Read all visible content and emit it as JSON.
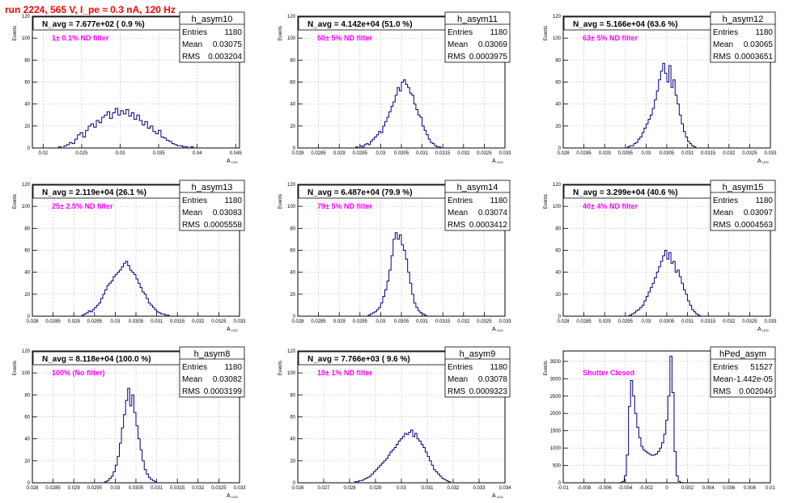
{
  "header": {
    "title": "run 2224,   565 V, I_pe ≈ 0.3 nA, 120 Hz",
    "title_color": "#ff0000"
  },
  "colors": {
    "hist_line": "#000080",
    "grid": "#c8c8c8",
    "annotation": "#ff00ff",
    "frame": "#000000"
  },
  "chart_data": [
    {
      "type": "histogram",
      "name": "h_asym10",
      "nav_text": "N_avg = 7.677e+02 ( 0.9 %)",
      "annotation": "1± 0.1% ND filter",
      "ylabel": "Events",
      "xlabel": "A_LED",
      "stats": {
        "entries_label": "Entries",
        "entries": "1180",
        "mean_label": "Mean",
        "mean": "0.03075",
        "rms_label": "RMS",
        "rms": "0.003204"
      },
      "xlim": [
        0.0186,
        0.0455
      ],
      "ylim": [
        0,
        120
      ],
      "x_ticks": [
        "0.02",
        "0.025",
        "0.03",
        "0.035",
        "0.04",
        "0.045"
      ],
      "x_tick_values": [
        0.02,
        0.025,
        0.03,
        0.035,
        0.04,
        0.045
      ],
      "y_ticks": [
        "0",
        "20",
        "40",
        "60",
        "80",
        "100",
        "120"
      ],
      "bin_start": 0.022,
      "bin_width": 0.00035,
      "counts": [
        1,
        0,
        2,
        3,
        5,
        4,
        8,
        12,
        14,
        10,
        16,
        20,
        22,
        19,
        25,
        23,
        28,
        30,
        33,
        27,
        32,
        36,
        30,
        34,
        31,
        35,
        29,
        32,
        26,
        30,
        25,
        21,
        24,
        18,
        20,
        15,
        13,
        16,
        10,
        9,
        7,
        6,
        4,
        3,
        2,
        2,
        1,
        1,
        0,
        1
      ]
    },
    {
      "type": "histogram",
      "name": "h_asym11",
      "nav_text": "N_avg = 4.142e+04 (51.0 %)",
      "annotation": "50± 5% ND filter",
      "ylabel": "Events",
      "xlabel": "A_LED",
      "stats": {
        "entries_label": "Entries",
        "entries": "1180",
        "mean_label": "Mean",
        "mean": "0.03069",
        "rms_label": "RMS",
        "rms": "0.0003975"
      },
      "xlim": [
        0.028,
        0.033
      ],
      "ylim": [
        0,
        120
      ],
      "x_ticks": [
        "0.028",
        "0.0285",
        "0.029",
        "0.0295",
        "0.03",
        "0.0305",
        "0.031",
        "0.0315",
        "0.032",
        "0.0325",
        "0.033"
      ],
      "x_tick_values": [
        0.028,
        0.0285,
        0.029,
        0.0295,
        0.03,
        0.0305,
        0.031,
        0.0315,
        0.032,
        0.0325,
        0.033
      ],
      "y_ticks": [
        "0",
        "20",
        "40",
        "60",
        "80",
        "100",
        "120"
      ],
      "bin_start": 0.0294,
      "bin_width": 5e-05,
      "counts": [
        1,
        0,
        2,
        1,
        3,
        4,
        3,
        6,
        8,
        10,
        12,
        15,
        14,
        20,
        24,
        28,
        33,
        38,
        42,
        48,
        55,
        52,
        60,
        62,
        58,
        55,
        50,
        48,
        40,
        35,
        30,
        28,
        20,
        16,
        12,
        8,
        5,
        4,
        2,
        1,
        1
      ]
    },
    {
      "type": "histogram",
      "name": "h_asym12",
      "nav_text": "N_avg = 5.166e+04 (63.6 %)",
      "annotation": "63± 5% ND filter",
      "ylabel": "Events",
      "xlabel": "A_LED",
      "stats": {
        "entries_label": "Entries",
        "entries": "1180",
        "mean_label": "Mean",
        "mean": "0.03065",
        "rms_label": "RMS",
        "rms": "0.0003651"
      },
      "xlim": [
        0.028,
        0.033
      ],
      "ylim": [
        0,
        120
      ],
      "x_ticks": [
        "0.028",
        "0.0285",
        "0.029",
        "0.0295",
        "0.03",
        "0.0305",
        "0.031",
        "0.0315",
        "0.032",
        "0.0325",
        "0.033"
      ],
      "x_tick_values": [
        0.028,
        0.0285,
        0.029,
        0.0295,
        0.03,
        0.0305,
        0.031,
        0.0315,
        0.032,
        0.0325,
        0.033
      ],
      "y_ticks": [
        "0",
        "20",
        "40",
        "60",
        "80",
        "100",
        "120"
      ],
      "bin_start": 0.02955,
      "bin_width": 5e-05,
      "counts": [
        1,
        2,
        2,
        4,
        5,
        8,
        10,
        14,
        18,
        22,
        26,
        30,
        36,
        44,
        52,
        62,
        70,
        77,
        68,
        60,
        75,
        55,
        62,
        48,
        40,
        30,
        22,
        15,
        10,
        6,
        4,
        2,
        1
      ]
    },
    {
      "type": "histogram",
      "name": "h_asym13",
      "nav_text": "N_avg = 2.119e+04 (26.1 %)",
      "annotation": "25± 2.5% ND filter",
      "ylabel": "Events",
      "xlabel": "A_LED",
      "stats": {
        "entries_label": "Entries",
        "entries": "1180",
        "mean_label": "Mean",
        "mean": "0.03083",
        "rms_label": "RMS",
        "rms": "0.0005558"
      },
      "xlim": [
        0.028,
        0.033
      ],
      "ylim": [
        0,
        120
      ],
      "x_ticks": [
        "0.028",
        "0.0285",
        "0.029",
        "0.0295",
        "0.03",
        "0.0305",
        "0.031",
        "0.0315",
        "0.032",
        "0.0325",
        "0.033"
      ],
      "x_tick_values": [
        0.028,
        0.0285,
        0.029,
        0.0295,
        0.03,
        0.0305,
        0.031,
        0.0315,
        0.032,
        0.0325,
        0.033
      ],
      "y_ticks": [
        "0",
        "20",
        "40",
        "60",
        "80",
        "100",
        "120"
      ],
      "bin_start": 0.0292,
      "bin_width": 5e-05,
      "counts": [
        1,
        2,
        3,
        5,
        4,
        6,
        8,
        10,
        12,
        16,
        20,
        24,
        28,
        30,
        32,
        36,
        38,
        40,
        42,
        45,
        48,
        50,
        46,
        42,
        40,
        38,
        34,
        30,
        26,
        22,
        20,
        16,
        12,
        10,
        8,
        6,
        4,
        3,
        2,
        2,
        1,
        1
      ]
    },
    {
      "type": "histogram",
      "name": "h_asym14",
      "nav_text": "N_avg = 6.487e+04 (79.9 %)",
      "annotation": "79± 5% ND filter",
      "ylabel": "Events",
      "xlabel": "A_LED",
      "stats": {
        "entries_label": "Entries",
        "entries": "1180",
        "mean_label": "Mean",
        "mean": "0.03074",
        "rms_label": "RMS",
        "rms": "0.0003412"
      },
      "xlim": [
        0.028,
        0.033
      ],
      "ylim": [
        0,
        120
      ],
      "x_ticks": [
        "0.028",
        "0.0285",
        "0.029",
        "0.0295",
        "0.03",
        "0.0305",
        "0.031",
        "0.0315",
        "0.032",
        "0.0325",
        "0.033"
      ],
      "x_tick_values": [
        0.028,
        0.0285,
        0.029,
        0.0295,
        0.03,
        0.0305,
        0.031,
        0.0315,
        0.032,
        0.0325,
        0.033
      ],
      "y_ticks": [
        "0",
        "20",
        "40",
        "60",
        "80",
        "100",
        "120"
      ],
      "bin_start": 0.0297,
      "bin_width": 5e-05,
      "counts": [
        1,
        2,
        3,
        4,
        6,
        8,
        12,
        18,
        24,
        32,
        42,
        55,
        70,
        76,
        70,
        74,
        65,
        60,
        52,
        40,
        30,
        20,
        12,
        8,
        5,
        3,
        2,
        1
      ]
    },
    {
      "type": "histogram",
      "name": "h_asym15",
      "nav_text": "N_avg = 3.299e+04 (40.6 %)",
      "annotation": "40± 4% ND filter",
      "ylabel": "Events",
      "xlabel": "A_LED",
      "stats": {
        "entries_label": "Entries",
        "entries": "1180",
        "mean_label": "Mean",
        "mean": "0.03097",
        "rms_label": "RMS",
        "rms": "0.0004563"
      },
      "xlim": [
        0.028,
        0.033
      ],
      "ylim": [
        0,
        120
      ],
      "x_ticks": [
        "0.028",
        "0.0285",
        "0.029",
        "0.0295",
        "0.03",
        "0.0305",
        "0.031",
        "0.0315",
        "0.032",
        "0.0325",
        "0.033"
      ],
      "x_tick_values": [
        0.028,
        0.0285,
        0.029,
        0.0295,
        0.03,
        0.0305,
        0.031,
        0.0315,
        0.032,
        0.0325,
        0.033
      ],
      "y_ticks": [
        "0",
        "20",
        "40",
        "60",
        "80",
        "100",
        "120"
      ],
      "bin_start": 0.0296,
      "bin_width": 5e-05,
      "counts": [
        1,
        2,
        3,
        5,
        6,
        8,
        10,
        14,
        18,
        22,
        26,
        30,
        35,
        40,
        45,
        50,
        55,
        60,
        52,
        58,
        48,
        50,
        40,
        42,
        36,
        30,
        24,
        20,
        14,
        10,
        6,
        4,
        2,
        1
      ]
    },
    {
      "type": "histogram",
      "name": "h_asym8",
      "nav_text": "N_avg = 8.118e+04 (100.0 %)",
      "annotation": "100% (No filter)",
      "ylabel": "Events",
      "xlabel": "A_LED",
      "stats": {
        "entries_label": "Entries",
        "entries": "1180",
        "mean_label": "Mean",
        "mean": "0.03082",
        "rms_label": "RMS",
        "rms": "0.0003199"
      },
      "xlim": [
        0.028,
        0.033
      ],
      "ylim": [
        0,
        120
      ],
      "x_ticks": [
        "0.028",
        "0.0285",
        "0.029",
        "0.0295",
        "0.03",
        "0.0305",
        "0.031",
        "0.0315",
        "0.032",
        "0.0325",
        "0.033"
      ],
      "x_tick_values": [
        0.028,
        0.0285,
        0.029,
        0.0295,
        0.03,
        0.0305,
        0.031,
        0.0315,
        0.032,
        0.0325,
        0.033
      ],
      "y_ticks": [
        "0",
        "20",
        "40",
        "60",
        "80",
        "100",
        "120"
      ],
      "bin_start": 0.02975,
      "bin_width": 5e-05,
      "counts": [
        1,
        2,
        4,
        6,
        10,
        16,
        24,
        36,
        50,
        62,
        75,
        86,
        70,
        80,
        64,
        52,
        40,
        30,
        20,
        12,
        8,
        5,
        3,
        2,
        1
      ]
    },
    {
      "type": "histogram",
      "name": "h_asym9",
      "nav_text": "N_avg = 7.766e+03 ( 9.6 %)",
      "annotation": "10± 1% ND filter",
      "ylabel": "Events",
      "xlabel": "A_LED",
      "stats": {
        "entries_label": "Entries",
        "entries": "1180",
        "mean_label": "Mean",
        "mean": "0.03078",
        "rms_label": "RMS",
        "rms": "0.0009323"
      },
      "xlim": [
        0.026,
        0.034
      ],
      "ylim": [
        0,
        120
      ],
      "x_ticks": [
        "0.026",
        "0.027",
        "0.028",
        "0.029",
        "0.03",
        "0.031",
        "0.032",
        "0.033",
        "0.034"
      ],
      "x_tick_values": [
        0.026,
        0.027,
        0.028,
        0.029,
        0.03,
        0.031,
        0.032,
        0.033,
        0.034
      ],
      "y_ticks": [
        "0",
        "20",
        "40",
        "60",
        "80",
        "100",
        "120"
      ],
      "bin_start": 0.0282,
      "bin_width": 8e-05,
      "counts": [
        1,
        1,
        2,
        2,
        3,
        4,
        5,
        6,
        8,
        10,
        12,
        14,
        16,
        18,
        20,
        22,
        25,
        28,
        30,
        32,
        35,
        38,
        40,
        42,
        45,
        44,
        46,
        48,
        42,
        45,
        40,
        38,
        35,
        32,
        28,
        24,
        20,
        16,
        12,
        10,
        8,
        6,
        4,
        3,
        2,
        1
      ]
    },
    {
      "type": "histogram",
      "name": "hPed_asym",
      "nav_text": "",
      "annotation": "Shutter Closed",
      "ylabel": "Events",
      "xlabel": "",
      "stats": {
        "entries_label": "Entries",
        "entries": "51527",
        "mean_label": "Mean",
        "mean": "-1.442e-05",
        "rms_label": "RMS",
        "rms": "0.002046"
      },
      "xlim": [
        -0.01,
        0.01
      ],
      "ylim": [
        0,
        3800
      ],
      "x_ticks": [
        "-0.01",
        "-0.008",
        "-0.006",
        "-0.004",
        "-0.002",
        "0",
        "0.002",
        "0.004",
        "0.006",
        "0.008",
        "0.01"
      ],
      "x_tick_values": [
        -0.01,
        -0.008,
        -0.006,
        -0.004,
        -0.002,
        0,
        0.002,
        0.004,
        0.006,
        0.008,
        0.01
      ],
      "y_ticks": [
        "0",
        "500",
        "1000",
        "1500",
        "2000",
        "2500",
        "3000",
        "3500"
      ],
      "bin_start": -0.0045,
      "bin_width": 0.0002,
      "counts": [
        10,
        40,
        200,
        800,
        2200,
        2950,
        2500,
        2000,
        1600,
        1300,
        1050,
        950,
        900,
        860,
        820,
        790,
        800,
        830,
        900,
        1000,
        1150,
        1400,
        1800,
        2500,
        3650,
        2600,
        900,
        200,
        40,
        10
      ]
    }
  ]
}
